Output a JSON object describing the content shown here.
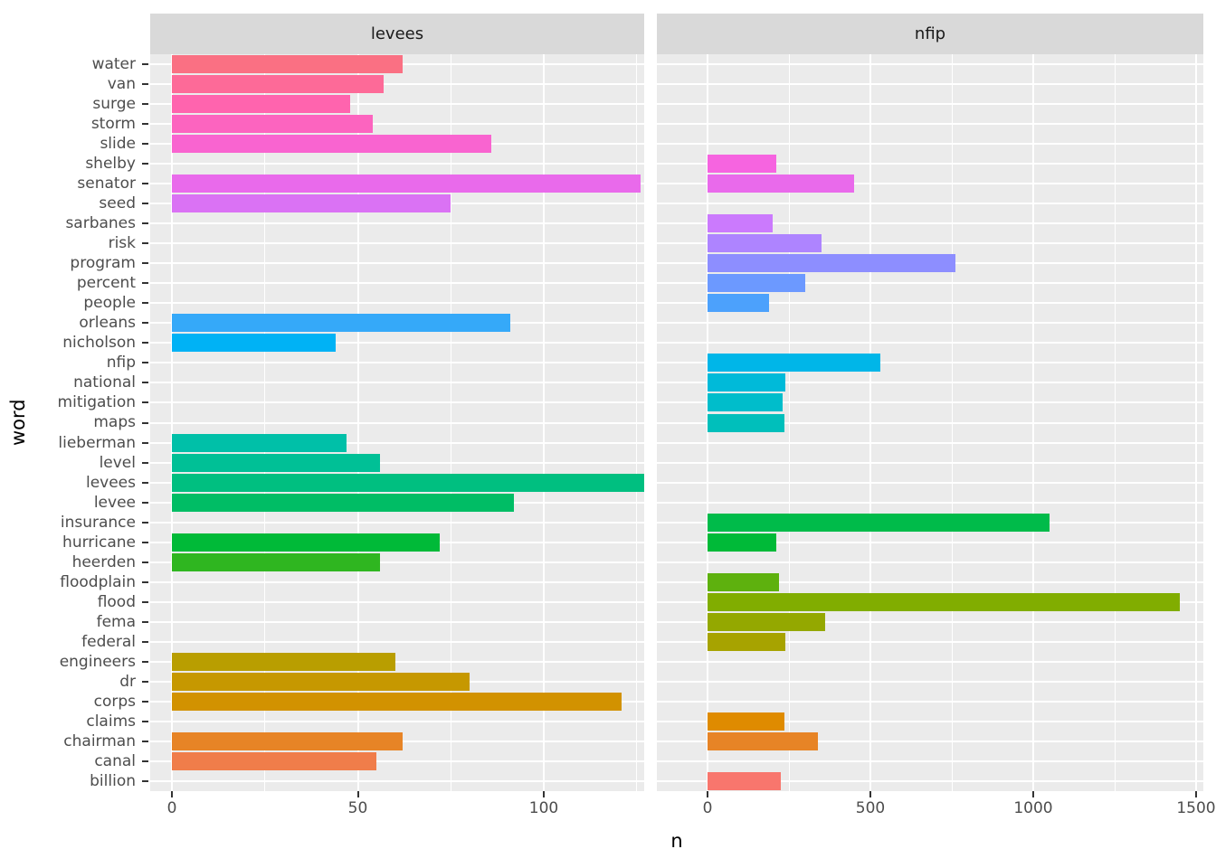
{
  "chart_data": {
    "type": "bar",
    "orientation": "horizontal",
    "title": "",
    "xlabel": "n",
    "ylabel": "word",
    "grid": true,
    "legend": "none",
    "categories": [
      "water",
      "van",
      "surge",
      "storm",
      "slide",
      "shelby",
      "senator",
      "seed",
      "sarbanes",
      "risk",
      "program",
      "percent",
      "people",
      "orleans",
      "nicholson",
      "nfip",
      "national",
      "mitigation",
      "maps",
      "lieberman",
      "level",
      "levees",
      "levee",
      "insurance",
      "hurricane",
      "heerden",
      "floodplain",
      "flood",
      "fema",
      "federal",
      "engineers",
      "dr",
      "corps",
      "claims",
      "chairman",
      "canal",
      "billion"
    ],
    "facets": [
      {
        "label": "levees",
        "x_ticks": [
          0,
          50,
          100
        ],
        "x_minor_ticks": [
          25,
          75,
          125
        ],
        "x_range": [
          0,
          130
        ],
        "values": [
          62,
          57,
          48,
          54,
          86,
          0,
          126,
          75,
          0,
          0,
          0,
          0,
          0,
          91,
          44,
          0,
          0,
          0,
          0,
          47,
          56,
          127,
          92,
          0,
          72,
          56,
          0,
          0,
          0,
          0,
          60,
          80,
          121,
          0,
          62,
          55,
          0
        ]
      },
      {
        "label": "nfip",
        "x_ticks": [
          0,
          500,
          1000,
          1500
        ],
        "x_minor_ticks": [
          250,
          750,
          1250
        ],
        "x_range": [
          0,
          1520
        ],
        "values": [
          0,
          0,
          0,
          0,
          0,
          210,
          450,
          0,
          200,
          350,
          760,
          300,
          190,
          0,
          0,
          530,
          240,
          230,
          235,
          0,
          0,
          0,
          0,
          1050,
          210,
          0,
          220,
          1450,
          360,
          240,
          0,
          0,
          0,
          235,
          340,
          0,
          225
        ]
      }
    ],
    "colors": {
      "billion": "#F8766D",
      "canal": "#F07D4A",
      "chairman": "#E78426",
      "claims": "#DF8B00",
      "corps": "#D29200",
      "dr": "#C69800",
      "engineers": "#B99E00",
      "federal": "#A7A300",
      "fema": "#94A800",
      "flood": "#81AD00",
      "floodplain": "#5EB10E",
      "heerden": "#2FB620",
      "hurricane": "#00BA38",
      "insurance": "#00BB4A",
      "levee": "#00BD65",
      "levees": "#00BF80",
      "level": "#00C096",
      "lieberman": "#00C0A8",
      "maps": "#00BFBB",
      "mitigation": "#00BDCB",
      "national": "#00BAD9",
      "nfip": "#00B6E8",
      "nicholson": "#00B2F5",
      "orleans": "#35A9F9",
      "people": "#4CA1FC",
      "percent": "#6C99FF",
      "program": "#8D8EFF",
      "risk": "#AE84FF",
      "sarbanes": "#CB7AFD",
      "seed": "#DA72F4",
      "senator": "#E96AEB",
      "shelby": "#F664E0",
      "slide": "#F964D0",
      "storm": "#FC64BF",
      "surge": "#FF64AE",
      "van": "#FD6A98",
      "water": "#FA7083"
    },
    "style": {
      "panel_bg": "#EBEBEB",
      "strip_bg": "#D9D9D9",
      "grid_color": "#FFFFFF",
      "axis_text_color": "#4D4D4D",
      "tick_color": "#333333",
      "title_color": "#000000",
      "plot_bg": "#FFFFFF"
    }
  }
}
